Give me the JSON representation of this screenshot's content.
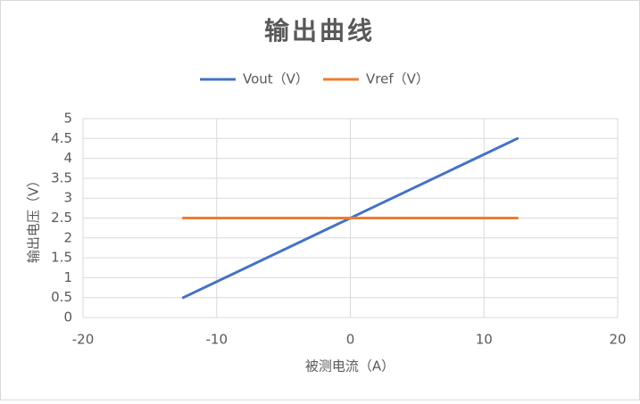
{
  "chart_data": {
    "type": "line",
    "title": "输出曲线",
    "x_label": "被测电流（A）",
    "y_label": "输出电压（V）",
    "x": [
      -12.5,
      12.5
    ],
    "series": [
      {
        "name": "Vout（V）",
        "color": "#4472c4",
        "values": [
          0.5,
          4.5
        ]
      },
      {
        "name": "Vref（V）",
        "color": "#ed7d31",
        "values": [
          2.5,
          2.5
        ]
      }
    ],
    "xlim": [
      -20,
      20
    ],
    "xticks": [
      -20,
      -10,
      0,
      10,
      20
    ],
    "ylim": [
      0,
      5
    ],
    "yticks": [
      0,
      0.5,
      1,
      1.5,
      2,
      2.5,
      3,
      3.5,
      4,
      4.5,
      5
    ],
    "grid": true,
    "legend": "top"
  }
}
